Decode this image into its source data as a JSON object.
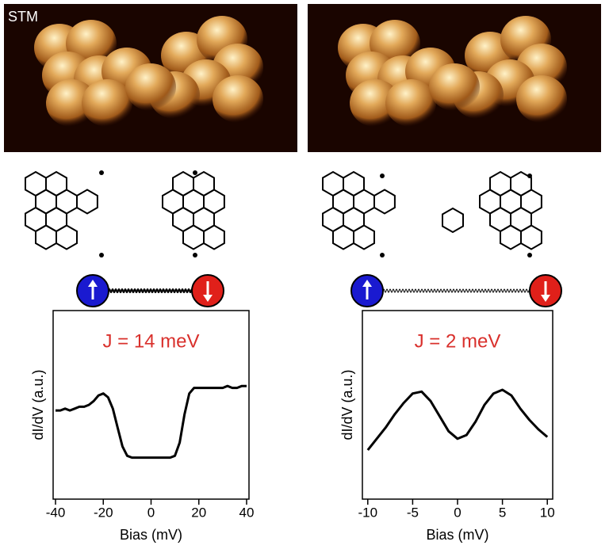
{
  "stm_label": "STM",
  "chart_data": [
    {
      "type": "line",
      "annotation": "J = 14 meV",
      "annotation_color": "#d9302c",
      "xlabel": "Bias (mV)",
      "ylabel": "dI/dV (a.u.)",
      "xlim": [
        -41,
        41
      ],
      "xticks": [
        -40,
        -20,
        0,
        20,
        40
      ],
      "ylim": [
        0,
        1
      ],
      "x": [
        -40,
        -38,
        -36,
        -34,
        -32,
        -30,
        -28,
        -26,
        -24,
        -22,
        -20,
        -18,
        -16,
        -14,
        -12,
        -10,
        -8,
        -6,
        -4,
        -2,
        0,
        2,
        4,
        6,
        8,
        10,
        12,
        14,
        16,
        18,
        20,
        22,
        24,
        26,
        28,
        30,
        32,
        34,
        36,
        38,
        40
      ],
      "series": [
        {
          "color": "#000000",
          "values": [
            0.47,
            0.47,
            0.48,
            0.47,
            0.48,
            0.49,
            0.49,
            0.5,
            0.52,
            0.55,
            0.56,
            0.54,
            0.48,
            0.38,
            0.28,
            0.23,
            0.22,
            0.22,
            0.22,
            0.22,
            0.22,
            0.22,
            0.22,
            0.22,
            0.22,
            0.23,
            0.3,
            0.45,
            0.56,
            0.59,
            0.59,
            0.59,
            0.59,
            0.59,
            0.59,
            0.59,
            0.6,
            0.59,
            0.59,
            0.6,
            0.6
          ]
        }
      ]
    },
    {
      "type": "line",
      "annotation": "J = 2 meV",
      "annotation_color": "#d9302c",
      "xlabel": "Bias (mV)",
      "ylabel": "dI/dV (a.u.)",
      "xlim": [
        -10.6,
        10.6
      ],
      "xticks": [
        -10,
        -5,
        0,
        5,
        10
      ],
      "ylim": [
        0,
        1
      ],
      "x": [
        -10,
        -9,
        -8,
        -7,
        -6,
        -5,
        -4,
        -3,
        -2,
        -1,
        0,
        1,
        2,
        3,
        4,
        5,
        6,
        7,
        8,
        9,
        10
      ],
      "series": [
        {
          "color": "#000000",
          "values": [
            0.26,
            0.32,
            0.38,
            0.45,
            0.51,
            0.56,
            0.57,
            0.52,
            0.44,
            0.36,
            0.32,
            0.34,
            0.41,
            0.5,
            0.56,
            0.58,
            0.55,
            0.48,
            0.42,
            0.37,
            0.33
          ]
        }
      ]
    }
  ]
}
